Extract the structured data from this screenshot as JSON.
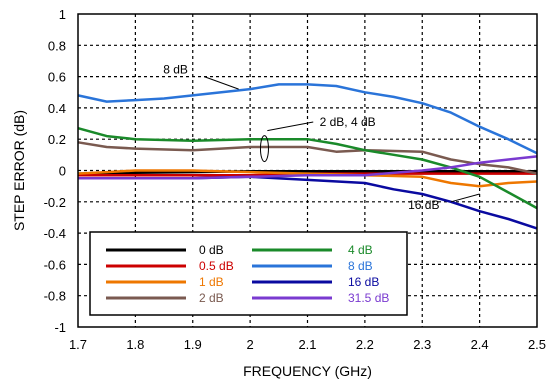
{
  "chart_data": {
    "type": "line",
    "title": "",
    "xlabel": "FREQUENCY (GHz)",
    "ylabel": "STEP ERROR (dB)",
    "xlim": [
      1.7,
      2.5
    ],
    "ylim": [
      -1,
      1
    ],
    "x_ticks": [
      "1.7",
      "1.8",
      "1.9",
      "2",
      "2.1",
      "2.2",
      "2.3",
      "2.4",
      "2.5"
    ],
    "y_ticks": [
      "1",
      "0.8",
      "0.6",
      "0.4",
      "0.2",
      "0",
      "-0.2",
      "-0.4",
      "-0.6",
      "-0.8",
      "-1"
    ],
    "grid": "dashed",
    "legend_position": "bottom-left",
    "series": [
      {
        "name": "0 dB",
        "color": "#000000",
        "x": [
          1.7,
          1.8,
          1.9,
          2.0,
          2.1,
          2.2,
          2.3,
          2.4,
          2.5
        ],
        "y": [
          -0.02,
          -0.015,
          -0.01,
          -0.005,
          -0.005,
          -0.005,
          -0.005,
          -0.005,
          -0.005
        ]
      },
      {
        "name": "0.5 dB",
        "color": "#cc0000",
        "x": [
          1.7,
          1.8,
          1.9,
          2.0,
          2.1,
          2.2,
          2.3,
          2.4,
          2.5
        ],
        "y": [
          -0.03,
          -0.03,
          -0.03,
          -0.03,
          -0.02,
          -0.02,
          -0.02,
          -0.02,
          -0.02
        ]
      },
      {
        "name": "1 dB",
        "color": "#ee7700",
        "x": [
          1.7,
          1.75,
          1.8,
          1.85,
          1.9,
          2.0,
          2.1,
          2.2,
          2.3,
          2.35,
          2.4,
          2.45,
          2.5
        ],
        "y": [
          -0.02,
          -0.01,
          0.0,
          0.0,
          0.0,
          -0.01,
          -0.02,
          -0.03,
          -0.04,
          -0.08,
          -0.1,
          -0.08,
          -0.07
        ]
      },
      {
        "name": "2 dB",
        "color": "#7a5a50",
        "x": [
          1.7,
          1.75,
          1.8,
          1.9,
          2.0,
          2.1,
          2.15,
          2.2,
          2.3,
          2.35,
          2.4,
          2.45,
          2.5
        ],
        "y": [
          0.18,
          0.15,
          0.14,
          0.13,
          0.15,
          0.15,
          0.12,
          0.13,
          0.12,
          0.07,
          0.04,
          0.02,
          -0.02
        ]
      },
      {
        "name": "4 dB",
        "color": "#1a8a2a",
        "x": [
          1.7,
          1.75,
          1.8,
          1.9,
          2.0,
          2.1,
          2.15,
          2.2,
          2.25,
          2.3,
          2.35,
          2.4,
          2.45,
          2.5
        ],
        "y": [
          0.27,
          0.22,
          0.2,
          0.19,
          0.2,
          0.2,
          0.17,
          0.13,
          0.1,
          0.07,
          0.02,
          -0.04,
          -0.14,
          -0.24
        ]
      },
      {
        "name": "8 dB",
        "color": "#2a74d9",
        "x": [
          1.7,
          1.75,
          1.8,
          1.85,
          1.9,
          2.0,
          2.05,
          2.1,
          2.15,
          2.2,
          2.25,
          2.3,
          2.35,
          2.4,
          2.45,
          2.5
        ],
        "y": [
          0.48,
          0.44,
          0.45,
          0.46,
          0.48,
          0.52,
          0.55,
          0.55,
          0.54,
          0.5,
          0.47,
          0.43,
          0.37,
          0.28,
          0.2,
          0.11
        ]
      },
      {
        "name": "16 dB",
        "color": "#0a0aa0",
        "x": [
          1.7,
          1.8,
          1.9,
          2.0,
          2.1,
          2.2,
          2.25,
          2.3,
          2.35,
          2.4,
          2.45,
          2.5
        ],
        "y": [
          -0.05,
          -0.05,
          -0.05,
          -0.04,
          -0.06,
          -0.08,
          -0.12,
          -0.15,
          -0.2,
          -0.26,
          -0.31,
          -0.37
        ]
      },
      {
        "name": "31.5 dB",
        "color": "#7a3ad0",
        "x": [
          1.7,
          1.8,
          1.9,
          2.0,
          2.1,
          2.2,
          2.3,
          2.35,
          2.4,
          2.45,
          2.5
        ],
        "y": [
          -0.05,
          -0.05,
          -0.05,
          -0.04,
          -0.03,
          -0.03,
          0.0,
          0.02,
          0.05,
          0.07,
          0.09
        ]
      }
    ],
    "annotations": [
      {
        "text": "8 dB",
        "x": 1.87,
        "y": 0.62
      },
      {
        "text": "2 dB, 4 dB",
        "x": 2.17,
        "y": 0.31
      },
      {
        "text": "16 dB",
        "x": 2.33,
        "y": -0.22
      }
    ]
  }
}
